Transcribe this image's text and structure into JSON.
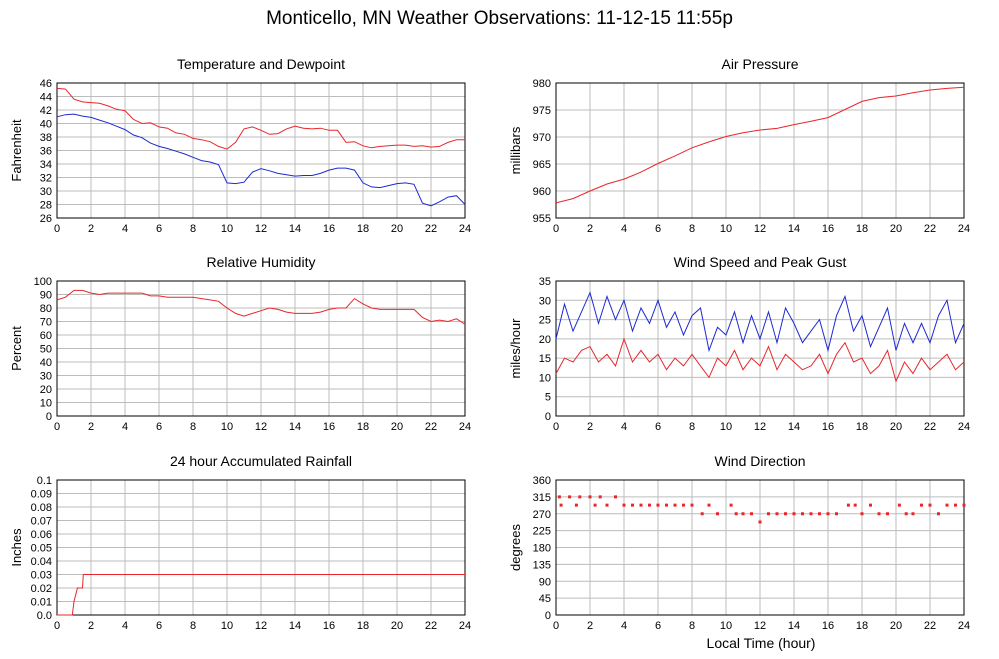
{
  "title": "Monticello, MN Weather Observations: 11-12-15 11:55p",
  "xlabel": "Local Time (hour)",
  "colors": {
    "red": "#e8272a",
    "blue": "#1e2ad2",
    "grid": "#bcbcbc"
  },
  "chart_data": [
    {
      "id": "temp",
      "type": "line",
      "title": "Temperature and Dewpoint",
      "ylabel": "Fahrenheit",
      "xlim": [
        0,
        24
      ],
      "ylim": [
        26,
        46
      ],
      "xticks": [
        "0",
        "2",
        "4",
        "6",
        "8",
        "10",
        "12",
        "14",
        "16",
        "18",
        "20",
        "22",
        "24"
      ],
      "yticks": [
        "26",
        "28",
        "30",
        "32",
        "34",
        "36",
        "38",
        "40",
        "42",
        "44",
        "46"
      ],
      "series": [
        {
          "color": "red",
          "x": [
            0,
            0.5,
            1,
            1.5,
            2,
            2.5,
            3,
            3.5,
            4,
            4.5,
            5,
            5.5,
            6,
            6.5,
            7,
            7.5,
            8,
            8.5,
            9,
            9.5,
            10,
            10.5,
            11,
            11.5,
            12,
            12.5,
            13,
            13.5,
            14,
            14.5,
            15,
            15.5,
            16,
            16.5,
            17,
            17.5,
            18,
            18.5,
            19,
            19.5,
            20,
            20.5,
            21,
            21.5,
            22,
            22.5,
            23,
            23.5,
            24
          ],
          "y": [
            45.2,
            45.1,
            43.6,
            43.2,
            43.1,
            43.0,
            42.6,
            42.1,
            41.9,
            40.6,
            40.0,
            40.1,
            39.5,
            39.3,
            38.6,
            38.4,
            37.8,
            37.6,
            37.3,
            36.6,
            36.2,
            37.2,
            39.2,
            39.5,
            39.0,
            38.4,
            38.5,
            39.2,
            39.6,
            39.3,
            39.2,
            39.3,
            39.0,
            39.0,
            37.2,
            37.3,
            36.7,
            36.4,
            36.6,
            36.7,
            36.8,
            36.8,
            36.6,
            36.7,
            36.5,
            36.6,
            37.2,
            37.6,
            37.6
          ]
        },
        {
          "color": "blue",
          "x": [
            0,
            0.5,
            1,
            1.5,
            2,
            2.5,
            3,
            3.5,
            4,
            4.5,
            5,
            5.5,
            6,
            6.5,
            7,
            7.5,
            8,
            8.5,
            9,
            9.5,
            10,
            10.5,
            11,
            11.5,
            12,
            12.5,
            13,
            13.5,
            14,
            14.5,
            15,
            15.5,
            16,
            16.5,
            17,
            17.5,
            18,
            18.5,
            19,
            19.5,
            20,
            20.5,
            21,
            21.5,
            22,
            22.5,
            23,
            23.5,
            24
          ],
          "y": [
            41.0,
            41.3,
            41.4,
            41.1,
            40.9,
            40.5,
            40.1,
            39.6,
            39.1,
            38.3,
            37.9,
            37.1,
            36.6,
            36.3,
            35.9,
            35.5,
            35.0,
            34.5,
            34.3,
            33.9,
            31.2,
            31.1,
            31.3,
            32.8,
            33.3,
            33.0,
            32.6,
            32.4,
            32.2,
            32.3,
            32.3,
            32.6,
            33.1,
            33.4,
            33.4,
            33.1,
            31.2,
            30.6,
            30.5,
            30.8,
            31.1,
            31.2,
            31.0,
            28.2,
            27.8,
            28.4,
            29.1,
            29.3,
            28.0
          ]
        }
      ]
    },
    {
      "id": "pressure",
      "type": "line",
      "title": "Air Pressure",
      "ylabel": "millibars",
      "xlim": [
        0,
        24
      ],
      "ylim": [
        955,
        980
      ],
      "xticks": [
        "0",
        "2",
        "4",
        "6",
        "8",
        "10",
        "12",
        "14",
        "16",
        "18",
        "20",
        "22",
        "24"
      ],
      "yticks": [
        "955",
        "960",
        "965",
        "970",
        "975",
        "980"
      ],
      "series": [
        {
          "color": "red",
          "x": [
            0,
            1,
            2,
            3,
            4,
            5,
            6,
            7,
            8,
            9,
            10,
            11,
            12,
            13,
            14,
            15,
            16,
            17,
            18,
            19,
            20,
            21,
            22,
            23,
            24
          ],
          "y": [
            957.8,
            958.6,
            960.0,
            961.3,
            962.2,
            963.5,
            965.1,
            966.5,
            968.0,
            969.1,
            970.1,
            970.8,
            971.3,
            971.6,
            972.3,
            972.9,
            973.6,
            975.1,
            976.6,
            977.3,
            977.6,
            978.2,
            978.7,
            979.0,
            979.2
          ]
        }
      ]
    },
    {
      "id": "humidity",
      "type": "line",
      "title": "Relative Humidity",
      "ylabel": "Percent",
      "xlim": [
        0,
        24
      ],
      "ylim": [
        0,
        100
      ],
      "xticks": [
        "0",
        "2",
        "4",
        "6",
        "8",
        "10",
        "12",
        "14",
        "16",
        "18",
        "20",
        "22",
        "24"
      ],
      "yticks": [
        "0",
        "10",
        "20",
        "30",
        "40",
        "50",
        "60",
        "70",
        "80",
        "90",
        "100"
      ],
      "series": [
        {
          "color": "red",
          "x": [
            0,
            0.5,
            1,
            1.5,
            2,
            2.5,
            3,
            3.5,
            4,
            4.5,
            5,
            5.5,
            6,
            6.5,
            7,
            7.5,
            8,
            8.5,
            9,
            9.5,
            10,
            10.5,
            11,
            11.5,
            12,
            12.5,
            13,
            13.5,
            14,
            14.5,
            15,
            15.5,
            16,
            16.5,
            17,
            17.5,
            18,
            18.5,
            19,
            19.5,
            20,
            20.5,
            21,
            21.5,
            22,
            22.5,
            23,
            23.5,
            24
          ],
          "y": [
            86,
            88,
            93,
            93,
            91,
            90,
            91,
            91,
            91,
            91,
            91,
            89,
            89,
            88,
            88,
            88,
            88,
            87,
            86,
            85,
            80,
            76,
            74,
            76,
            78,
            80,
            79,
            77,
            76,
            76,
            76,
            77,
            79,
            80,
            80,
            87,
            83,
            80,
            79,
            79,
            79,
            79,
            79,
            73,
            70,
            71,
            70,
            72,
            68
          ]
        }
      ]
    },
    {
      "id": "wind",
      "type": "line",
      "title": "Wind Speed and Peak Gust",
      "ylabel": "miles/hour",
      "xlim": [
        0,
        24
      ],
      "ylim": [
        0,
        35
      ],
      "xticks": [
        "0",
        "2",
        "4",
        "6",
        "8",
        "10",
        "12",
        "14",
        "16",
        "18",
        "20",
        "22",
        "24"
      ],
      "yticks": [
        "0",
        "5",
        "10",
        "15",
        "20",
        "25",
        "30",
        "35"
      ],
      "series": [
        {
          "color": "blue",
          "x": [
            0,
            0.5,
            1,
            1.5,
            2,
            2.5,
            3,
            3.5,
            4,
            4.5,
            5,
            5.5,
            6,
            6.5,
            7,
            7.5,
            8,
            8.5,
            9,
            9.5,
            10,
            10.5,
            11,
            11.5,
            12,
            12.5,
            13,
            13.5,
            14,
            14.5,
            15,
            15.5,
            16,
            16.5,
            17,
            17.5,
            18,
            18.5,
            19,
            19.5,
            20,
            20.5,
            21,
            21.5,
            22,
            22.5,
            23,
            23.5,
            24
          ],
          "y": [
            20,
            29,
            22,
            27,
            32,
            24,
            31,
            25,
            30,
            22,
            28,
            24,
            30,
            23,
            27,
            21,
            26,
            28,
            17,
            23,
            21,
            27,
            19,
            26,
            20,
            27,
            19,
            28,
            24,
            19,
            22,
            25,
            17,
            26,
            31,
            22,
            26,
            18,
            23,
            28,
            17,
            24,
            19,
            24,
            19,
            26,
            30,
            19,
            24
          ]
        },
        {
          "color": "red",
          "x": [
            0,
            0.5,
            1,
            1.5,
            2,
            2.5,
            3,
            3.5,
            4,
            4.5,
            5,
            5.5,
            6,
            6.5,
            7,
            7.5,
            8,
            8.5,
            9,
            9.5,
            10,
            10.5,
            11,
            11.5,
            12,
            12.5,
            13,
            13.5,
            14,
            14.5,
            15,
            15.5,
            16,
            16.5,
            17,
            17.5,
            18,
            18.5,
            19,
            19.5,
            20,
            20.5,
            21,
            21.5,
            22,
            22.5,
            23,
            23.5,
            24
          ],
          "y": [
            11,
            15,
            14,
            17,
            18,
            14,
            16,
            13,
            20,
            14,
            17,
            14,
            16,
            12,
            15,
            13,
            16,
            13,
            10,
            15,
            13,
            17,
            12,
            15,
            13,
            18,
            12,
            16,
            14,
            12,
            13,
            16,
            11,
            16,
            19,
            14,
            15,
            11,
            13,
            17,
            9,
            14,
            11,
            15,
            12,
            14,
            16,
            12,
            14
          ]
        }
      ]
    },
    {
      "id": "rain",
      "type": "line",
      "title": "24 hour Accumulated Rainfall",
      "ylabel": "Inches",
      "xlim": [
        0,
        24
      ],
      "ylim": [
        0,
        0.1
      ],
      "xticks": [
        "0",
        "2",
        "4",
        "6",
        "8",
        "10",
        "12",
        "14",
        "16",
        "18",
        "20",
        "22",
        "24"
      ],
      "yticks": [
        "0.0",
        "0.01",
        "0.02",
        "0.03",
        "0.04",
        "0.05",
        "0.06",
        "0.07",
        "0.08",
        "0.09",
        "0.1"
      ],
      "series": [
        {
          "color": "red",
          "x": [
            0,
            0.9,
            1.0,
            1.2,
            1.3,
            1.5,
            1.55,
            24
          ],
          "y": [
            0,
            0,
            0.01,
            0.02,
            0.02,
            0.02,
            0.03,
            0.03
          ]
        }
      ]
    },
    {
      "id": "direction",
      "type": "scatter",
      "title": "Wind Direction",
      "ylabel": "degrees",
      "xlim": [
        0,
        24
      ],
      "ylim": [
        0,
        360
      ],
      "xticks": [
        "0",
        "2",
        "4",
        "6",
        "8",
        "10",
        "12",
        "14",
        "16",
        "18",
        "20",
        "22",
        "24"
      ],
      "yticks": [
        "0",
        "45",
        "90",
        "135",
        "180",
        "225",
        "270",
        "315",
        "360"
      ],
      "series": [
        {
          "color": "red",
          "points": [
            [
              0.2,
              315
            ],
            [
              0.8,
              315
            ],
            [
              1.4,
              315
            ],
            [
              2.0,
              315
            ],
            [
              2.6,
              315
            ],
            [
              3.5,
              315
            ],
            [
              0.3,
              293
            ],
            [
              1.2,
              293
            ],
            [
              2.3,
              293
            ],
            [
              3.0,
              293
            ],
            [
              4.0,
              293
            ],
            [
              4.5,
              293
            ],
            [
              5.0,
              293
            ],
            [
              5.5,
              293
            ],
            [
              6.0,
              293
            ],
            [
              6.5,
              293
            ],
            [
              7.0,
              293
            ],
            [
              7.5,
              293
            ],
            [
              8.0,
              293
            ],
            [
              8.6,
              270
            ],
            [
              9.0,
              293
            ],
            [
              9.5,
              270
            ],
            [
              10.3,
              293
            ],
            [
              10.6,
              270
            ],
            [
              11.0,
              270
            ],
            [
              11.5,
              270
            ],
            [
              12.0,
              248
            ],
            [
              12.5,
              270
            ],
            [
              13.0,
              270
            ],
            [
              13.5,
              270
            ],
            [
              14.0,
              270
            ],
            [
              14.5,
              270
            ],
            [
              15.0,
              270
            ],
            [
              15.5,
              270
            ],
            [
              16.0,
              270
            ],
            [
              16.5,
              270
            ],
            [
              17.2,
              293
            ],
            [
              17.6,
              293
            ],
            [
              18.0,
              270
            ],
            [
              18.5,
              293
            ],
            [
              19.0,
              270
            ],
            [
              19.5,
              270
            ],
            [
              20.2,
              293
            ],
            [
              20.6,
              270
            ],
            [
              21.0,
              270
            ],
            [
              21.5,
              293
            ],
            [
              22.0,
              293
            ],
            [
              22.5,
              270
            ],
            [
              23.0,
              293
            ],
            [
              23.5,
              293
            ],
            [
              24.0,
              293
            ]
          ]
        }
      ]
    }
  ]
}
